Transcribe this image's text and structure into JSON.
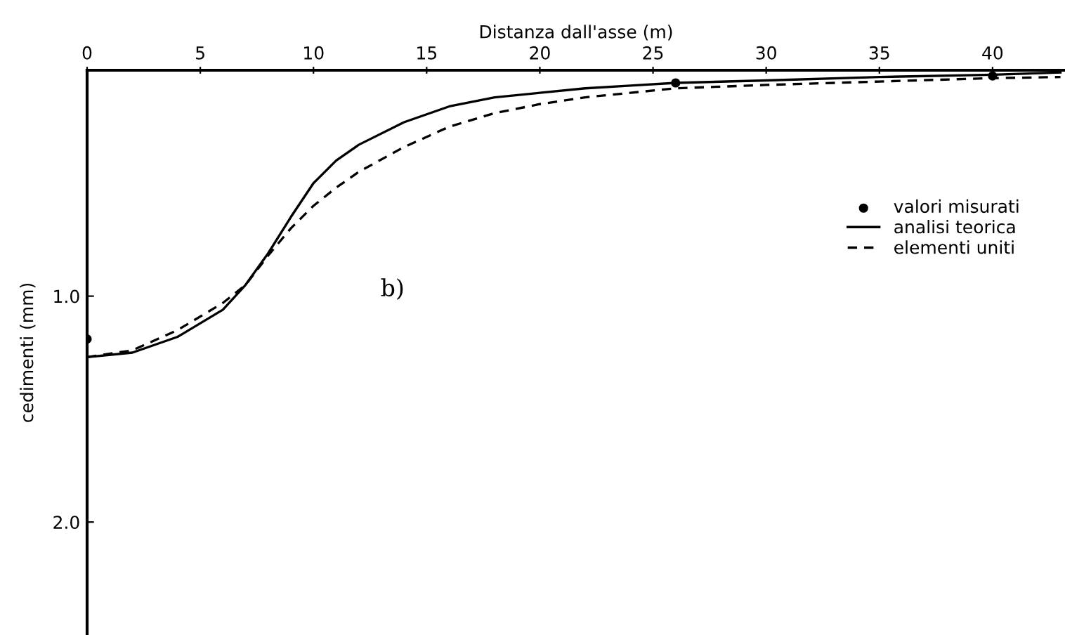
{
  "chart_data": {
    "type": "line",
    "xlabel": "Distanza dall'asse (m)",
    "ylabel": "cedimenti (mm)",
    "xlim": [
      0,
      43.2
    ],
    "ylim": [
      2.5,
      0
    ],
    "xticks": [
      0,
      5,
      10,
      15,
      20,
      25,
      30,
      35,
      40
    ],
    "yticks": [
      {
        "value": 1,
        "label": "1.0"
      },
      {
        "value": 2,
        "label": "2.0"
      }
    ],
    "grid": false,
    "legend": "right",
    "annotations": [
      "b)"
    ],
    "series": [
      {
        "name": "valori misurati",
        "type": "scatter",
        "marker": "circle",
        "color": "#000000",
        "x": [
          0,
          26,
          40
        ],
        "values": [
          1.19,
          0.056,
          0.025
        ]
      },
      {
        "name": "analisi teorica",
        "line_style": "solid",
        "color": "#000000",
        "x": [
          0,
          2,
          4,
          6,
          7,
          8,
          9,
          10,
          11,
          12,
          14,
          16,
          18,
          20,
          22,
          24,
          26,
          30,
          35,
          40,
          43
        ],
        "values": [
          1.27,
          1.25,
          1.18,
          1.06,
          0.95,
          0.81,
          0.65,
          0.5,
          0.4,
          0.33,
          0.23,
          0.16,
          0.12,
          0.1,
          0.08,
          0.068,
          0.056,
          0.045,
          0.03,
          0.02,
          0.01
        ]
      },
      {
        "name": "elementi uniti",
        "line_style": "dashed",
        "color": "#000000",
        "x": [
          0,
          2,
          4,
          6,
          7,
          8,
          9,
          10,
          11,
          12,
          14,
          16,
          18,
          20,
          22,
          24,
          26,
          30,
          35,
          40,
          43
        ],
        "values": [
          1.27,
          1.24,
          1.15,
          1.03,
          0.95,
          0.82,
          0.7,
          0.6,
          0.52,
          0.45,
          0.34,
          0.25,
          0.19,
          0.15,
          0.12,
          0.1,
          0.08,
          0.065,
          0.05,
          0.035,
          0.03
        ]
      }
    ]
  }
}
